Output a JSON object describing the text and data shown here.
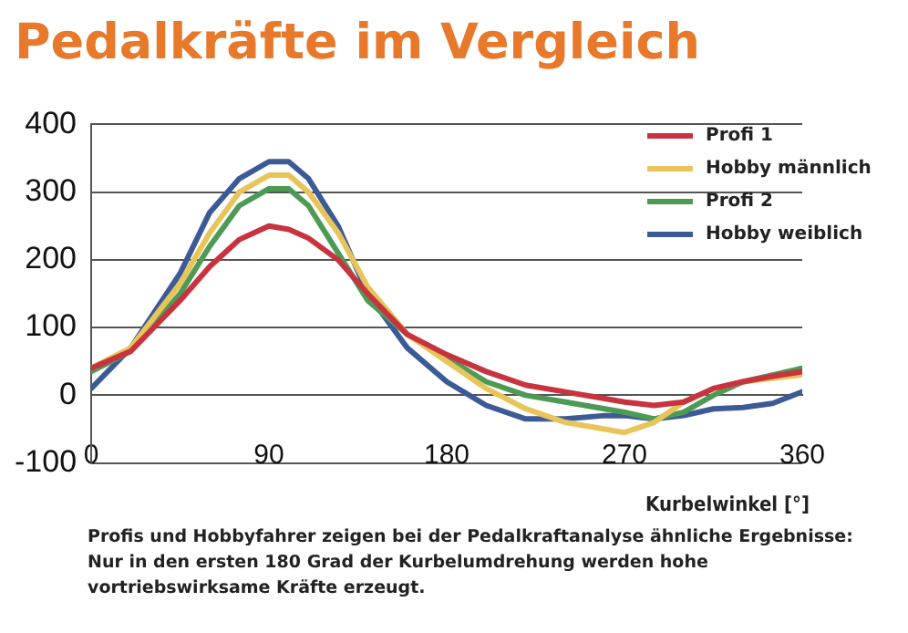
{
  "chart_data": {
    "type": "line",
    "title": "Pedalkräfte im Vergleich",
    "xlabel": "Kurbelwinkel [°]",
    "annotations": [
      "Profis und Hobbyfahrer zeigen bei der Pedalkraftanalyse ähnliche Ergebnisse: Nur in den ersten 180 Grad der Kurbelumdrehung werden hohe vortriebswirksame Kräfte erzeugt."
    ],
    "x": [
      0,
      20,
      45,
      60,
      75,
      90,
      100,
      110,
      125,
      140,
      160,
      180,
      200,
      220,
      240,
      260,
      270,
      285,
      300,
      315,
      330,
      345,
      360
    ],
    "series": [
      {
        "name": "Profi 1",
        "color": "#c8333f",
        "values": [
          40,
          65,
          140,
          190,
          230,
          250,
          245,
          232,
          200,
          150,
          90,
          60,
          35,
          15,
          5,
          -5,
          -10,
          -15,
          -10,
          10,
          20,
          28,
          35
        ]
      },
      {
        "name": "Hobby männlich",
        "color": "#e8c55a",
        "values": [
          40,
          70,
          165,
          240,
          300,
          325,
          325,
          300,
          240,
          160,
          90,
          50,
          10,
          -20,
          -40,
          -50,
          -55,
          -40,
          -10,
          10,
          20,
          25,
          30
        ]
      },
      {
        "name": "Profi 2",
        "color": "#4d9a55",
        "values": [
          35,
          65,
          150,
          220,
          280,
          305,
          305,
          280,
          210,
          140,
          90,
          55,
          20,
          0,
          -10,
          -20,
          -25,
          -35,
          -25,
          0,
          20,
          30,
          40
        ]
      },
      {
        "name": "Hobby weiblich",
        "color": "#3b5a96",
        "values": [
          10,
          70,
          180,
          270,
          320,
          345,
          345,
          320,
          250,
          150,
          70,
          20,
          -15,
          -35,
          -35,
          -30,
          -30,
          -35,
          -30,
          -20,
          -18,
          -12,
          5
        ]
      }
    ],
    "xlim": [
      0,
      360
    ],
    "xticks": [
      0,
      90,
      180,
      270,
      360
    ],
    "ylim": [
      -100,
      400
    ],
    "yticks": [
      -100,
      0,
      100,
      200,
      300,
      400
    ],
    "grid": "y",
    "legend": "top right",
    "marker": "none",
    "line_style": "solid"
  }
}
